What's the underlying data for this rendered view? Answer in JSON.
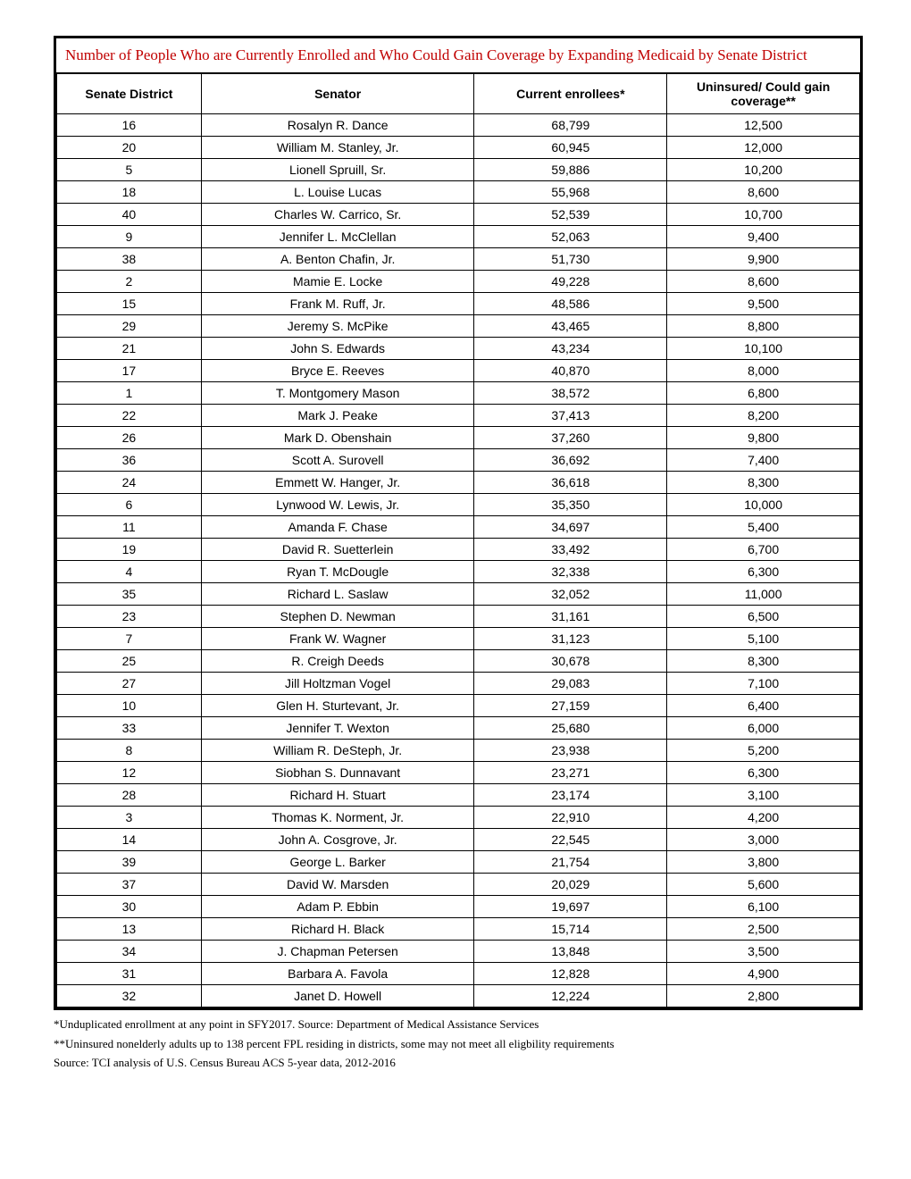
{
  "table": {
    "title": "Number of People Who are Currently Enrolled and Who Could Gain Coverage by Expanding Medicaid by Senate District",
    "title_color": "#c00000",
    "border_color": "#000000",
    "columns": [
      {
        "label": "Senate District",
        "width_pct": 18
      },
      {
        "label": "Senator",
        "width_pct": 34
      },
      {
        "label": "Current enrollees*",
        "width_pct": 24
      },
      {
        "label": "Uninsured/ Could gain coverage**",
        "width_pct": 24
      }
    ],
    "rows": [
      [
        "16",
        "Rosalyn R. Dance",
        "68,799",
        "12,500"
      ],
      [
        "20",
        "William M. Stanley, Jr.",
        "60,945",
        "12,000"
      ],
      [
        "5",
        "Lionell Spruill, Sr.",
        "59,886",
        "10,200"
      ],
      [
        "18",
        "L. Louise Lucas",
        "55,968",
        "8,600"
      ],
      [
        "40",
        "Charles W. Carrico, Sr.",
        "52,539",
        "10,700"
      ],
      [
        "9",
        "Jennifer L. McClellan",
        "52,063",
        "9,400"
      ],
      [
        "38",
        "A. Benton Chafin, Jr.",
        "51,730",
        "9,900"
      ],
      [
        "2",
        "Mamie E. Locke",
        "49,228",
        "8,600"
      ],
      [
        "15",
        "Frank M. Ruff, Jr.",
        "48,586",
        "9,500"
      ],
      [
        "29",
        "Jeremy S. McPike",
        "43,465",
        "8,800"
      ],
      [
        "21",
        "John S. Edwards",
        "43,234",
        "10,100"
      ],
      [
        "17",
        "Bryce E. Reeves",
        "40,870",
        "8,000"
      ],
      [
        "1",
        "T. Montgomery Mason",
        "38,572",
        "6,800"
      ],
      [
        "22",
        "Mark J. Peake",
        "37,413",
        "8,200"
      ],
      [
        "26",
        "Mark D. Obenshain",
        "37,260",
        "9,800"
      ],
      [
        "36",
        "Scott A. Surovell",
        "36,692",
        "7,400"
      ],
      [
        "24",
        "Emmett W. Hanger, Jr.",
        "36,618",
        "8,300"
      ],
      [
        "6",
        "Lynwood W. Lewis, Jr.",
        "35,350",
        "10,000"
      ],
      [
        "11",
        "Amanda F. Chase",
        "34,697",
        "5,400"
      ],
      [
        "19",
        "David R. Suetterlein",
        "33,492",
        "6,700"
      ],
      [
        "4",
        "Ryan T. McDougle",
        "32,338",
        "6,300"
      ],
      [
        "35",
        "Richard L. Saslaw",
        "32,052",
        "11,000"
      ],
      [
        "23",
        "Stephen D. Newman",
        "31,161",
        "6,500"
      ],
      [
        "7",
        "Frank W. Wagner",
        "31,123",
        "5,100"
      ],
      [
        "25",
        "R. Creigh Deeds",
        "30,678",
        "8,300"
      ],
      [
        "27",
        "Jill Holtzman Vogel",
        "29,083",
        "7,100"
      ],
      [
        "10",
        "Glen H. Sturtevant, Jr.",
        "27,159",
        "6,400"
      ],
      [
        "33",
        "Jennifer T. Wexton",
        "25,680",
        "6,000"
      ],
      [
        "8",
        "William R. DeSteph, Jr.",
        "23,938",
        "5,200"
      ],
      [
        "12",
        "Siobhan S. Dunnavant",
        "23,271",
        "6,300"
      ],
      [
        "28",
        "Richard H. Stuart",
        "23,174",
        "3,100"
      ],
      [
        "3",
        "Thomas K. Norment, Jr.",
        "22,910",
        "4,200"
      ],
      [
        "14",
        "John A. Cosgrove, Jr.",
        "22,545",
        "3,000"
      ],
      [
        "39",
        "George L. Barker",
        "21,754",
        "3,800"
      ],
      [
        "37",
        "David W. Marsden",
        "20,029",
        "5,600"
      ],
      [
        "30",
        "Adam P. Ebbin",
        "19,697",
        "6,100"
      ],
      [
        "13",
        "Richard H. Black",
        "15,714",
        "2,500"
      ],
      [
        "34",
        "J. Chapman Petersen",
        "13,848",
        "3,500"
      ],
      [
        "31",
        "Barbara A. Favola",
        "12,828",
        "4,900"
      ],
      [
        "32",
        "Janet D. Howell",
        "12,224",
        "2,800"
      ]
    ]
  },
  "footnotes": {
    "note1": "*Unduplicated enrollment at any point in SFY2017. Source: Department of Medical Assistance Services",
    "note2": "**Uninsured nonelderly adults up to 138 percent FPL residing in districts, some may not meet all eligbility requirements",
    "note3": "Source: TCI analysis of U.S. Census Bureau ACS 5-year data, 2012-2016"
  }
}
